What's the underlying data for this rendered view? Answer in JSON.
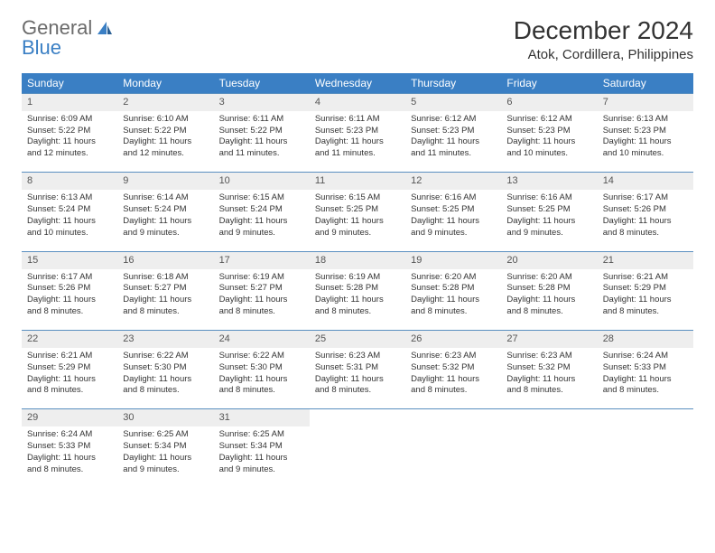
{
  "logo": {
    "text1": "General",
    "text2": "Blue"
  },
  "title": "December 2024",
  "location": "Atok, Cordillera, Philippines",
  "colors": {
    "header_bg": "#3a7fc4",
    "header_text": "#ffffff",
    "daynum_bg": "#eeeeee",
    "border": "#5a8fc0",
    "text": "#333333",
    "logo_gray": "#6b6b6b",
    "logo_blue": "#3a7fc4"
  },
  "weekdays": [
    "Sunday",
    "Monday",
    "Tuesday",
    "Wednesday",
    "Thursday",
    "Friday",
    "Saturday"
  ],
  "rows": [
    {
      "nums": [
        "1",
        "2",
        "3",
        "4",
        "5",
        "6",
        "7"
      ],
      "cells": [
        {
          "sunrise": "Sunrise: 6:09 AM",
          "sunset": "Sunset: 5:22 PM",
          "daylight": "Daylight: 11 hours and 12 minutes."
        },
        {
          "sunrise": "Sunrise: 6:10 AM",
          "sunset": "Sunset: 5:22 PM",
          "daylight": "Daylight: 11 hours and 12 minutes."
        },
        {
          "sunrise": "Sunrise: 6:11 AM",
          "sunset": "Sunset: 5:22 PM",
          "daylight": "Daylight: 11 hours and 11 minutes."
        },
        {
          "sunrise": "Sunrise: 6:11 AM",
          "sunset": "Sunset: 5:23 PM",
          "daylight": "Daylight: 11 hours and 11 minutes."
        },
        {
          "sunrise": "Sunrise: 6:12 AM",
          "sunset": "Sunset: 5:23 PM",
          "daylight": "Daylight: 11 hours and 11 minutes."
        },
        {
          "sunrise": "Sunrise: 6:12 AM",
          "sunset": "Sunset: 5:23 PM",
          "daylight": "Daylight: 11 hours and 10 minutes."
        },
        {
          "sunrise": "Sunrise: 6:13 AM",
          "sunset": "Sunset: 5:23 PM",
          "daylight": "Daylight: 11 hours and 10 minutes."
        }
      ]
    },
    {
      "nums": [
        "8",
        "9",
        "10",
        "11",
        "12",
        "13",
        "14"
      ],
      "cells": [
        {
          "sunrise": "Sunrise: 6:13 AM",
          "sunset": "Sunset: 5:24 PM",
          "daylight": "Daylight: 11 hours and 10 minutes."
        },
        {
          "sunrise": "Sunrise: 6:14 AM",
          "sunset": "Sunset: 5:24 PM",
          "daylight": "Daylight: 11 hours and 9 minutes."
        },
        {
          "sunrise": "Sunrise: 6:15 AM",
          "sunset": "Sunset: 5:24 PM",
          "daylight": "Daylight: 11 hours and 9 minutes."
        },
        {
          "sunrise": "Sunrise: 6:15 AM",
          "sunset": "Sunset: 5:25 PM",
          "daylight": "Daylight: 11 hours and 9 minutes."
        },
        {
          "sunrise": "Sunrise: 6:16 AM",
          "sunset": "Sunset: 5:25 PM",
          "daylight": "Daylight: 11 hours and 9 minutes."
        },
        {
          "sunrise": "Sunrise: 6:16 AM",
          "sunset": "Sunset: 5:25 PM",
          "daylight": "Daylight: 11 hours and 9 minutes."
        },
        {
          "sunrise": "Sunrise: 6:17 AM",
          "sunset": "Sunset: 5:26 PM",
          "daylight": "Daylight: 11 hours and 8 minutes."
        }
      ]
    },
    {
      "nums": [
        "15",
        "16",
        "17",
        "18",
        "19",
        "20",
        "21"
      ],
      "cells": [
        {
          "sunrise": "Sunrise: 6:17 AM",
          "sunset": "Sunset: 5:26 PM",
          "daylight": "Daylight: 11 hours and 8 minutes."
        },
        {
          "sunrise": "Sunrise: 6:18 AM",
          "sunset": "Sunset: 5:27 PM",
          "daylight": "Daylight: 11 hours and 8 minutes."
        },
        {
          "sunrise": "Sunrise: 6:19 AM",
          "sunset": "Sunset: 5:27 PM",
          "daylight": "Daylight: 11 hours and 8 minutes."
        },
        {
          "sunrise": "Sunrise: 6:19 AM",
          "sunset": "Sunset: 5:28 PM",
          "daylight": "Daylight: 11 hours and 8 minutes."
        },
        {
          "sunrise": "Sunrise: 6:20 AM",
          "sunset": "Sunset: 5:28 PM",
          "daylight": "Daylight: 11 hours and 8 minutes."
        },
        {
          "sunrise": "Sunrise: 6:20 AM",
          "sunset": "Sunset: 5:28 PM",
          "daylight": "Daylight: 11 hours and 8 minutes."
        },
        {
          "sunrise": "Sunrise: 6:21 AM",
          "sunset": "Sunset: 5:29 PM",
          "daylight": "Daylight: 11 hours and 8 minutes."
        }
      ]
    },
    {
      "nums": [
        "22",
        "23",
        "24",
        "25",
        "26",
        "27",
        "28"
      ],
      "cells": [
        {
          "sunrise": "Sunrise: 6:21 AM",
          "sunset": "Sunset: 5:29 PM",
          "daylight": "Daylight: 11 hours and 8 minutes."
        },
        {
          "sunrise": "Sunrise: 6:22 AM",
          "sunset": "Sunset: 5:30 PM",
          "daylight": "Daylight: 11 hours and 8 minutes."
        },
        {
          "sunrise": "Sunrise: 6:22 AM",
          "sunset": "Sunset: 5:30 PM",
          "daylight": "Daylight: 11 hours and 8 minutes."
        },
        {
          "sunrise": "Sunrise: 6:23 AM",
          "sunset": "Sunset: 5:31 PM",
          "daylight": "Daylight: 11 hours and 8 minutes."
        },
        {
          "sunrise": "Sunrise: 6:23 AM",
          "sunset": "Sunset: 5:32 PM",
          "daylight": "Daylight: 11 hours and 8 minutes."
        },
        {
          "sunrise": "Sunrise: 6:23 AM",
          "sunset": "Sunset: 5:32 PM",
          "daylight": "Daylight: 11 hours and 8 minutes."
        },
        {
          "sunrise": "Sunrise: 6:24 AM",
          "sunset": "Sunset: 5:33 PM",
          "daylight": "Daylight: 11 hours and 8 minutes."
        }
      ]
    },
    {
      "nums": [
        "29",
        "30",
        "31",
        "",
        "",
        "",
        ""
      ],
      "cells": [
        {
          "sunrise": "Sunrise: 6:24 AM",
          "sunset": "Sunset: 5:33 PM",
          "daylight": "Daylight: 11 hours and 8 minutes."
        },
        {
          "sunrise": "Sunrise: 6:25 AM",
          "sunset": "Sunset: 5:34 PM",
          "daylight": "Daylight: 11 hours and 9 minutes."
        },
        {
          "sunrise": "Sunrise: 6:25 AM",
          "sunset": "Sunset: 5:34 PM",
          "daylight": "Daylight: 11 hours and 9 minutes."
        },
        null,
        null,
        null,
        null
      ]
    }
  ]
}
